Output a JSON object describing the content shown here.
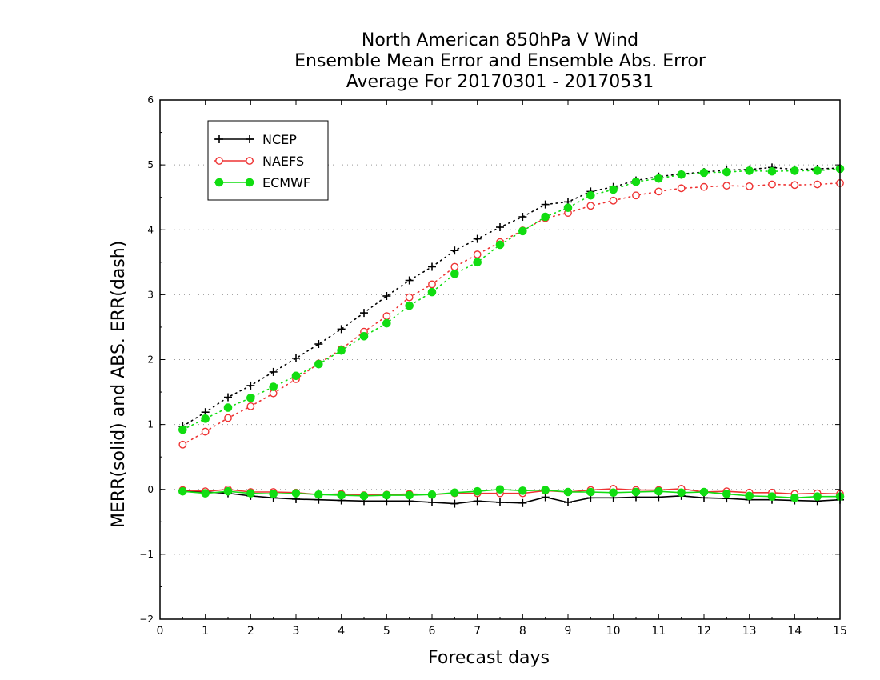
{
  "chart_data": {
    "type": "line",
    "title": [
      "North American 850hPa V Wind",
      "Ensemble Mean Error and Ensemble Abs. Error",
      "Average For 20170301 - 20170531"
    ],
    "xlabel": "Forecast days",
    "ylabel": "MERR(solid) and ABS. ERR(dash)",
    "xlim": [
      0,
      15
    ],
    "ylim": [
      -2,
      6
    ],
    "x_ticks": [
      "0",
      "1",
      "2",
      "3",
      "4",
      "5",
      "6",
      "7",
      "8",
      "9",
      "10",
      "11",
      "12",
      "13",
      "14",
      "15"
    ],
    "y_ticks": [
      "−2",
      "−1",
      "0",
      "1",
      "2",
      "3",
      "4",
      "5",
      "6"
    ],
    "grid": "horizontal dotted",
    "legend_position": "top-left",
    "x": [
      0.5,
      1,
      1.5,
      2,
      2.5,
      3,
      3.5,
      4,
      4.5,
      5,
      5.5,
      6,
      6.5,
      7,
      7.5,
      8,
      8.5,
      9,
      9.5,
      10,
      10.5,
      11,
      11.5,
      12,
      12.5,
      13,
      13.5,
      14,
      14.5,
      15
    ],
    "series": [
      {
        "name": "NCEP",
        "color": "#000000",
        "marker": "plus",
        "abs_err": [
          0.97,
          1.19,
          1.42,
          1.6,
          1.81,
          2.02,
          2.24,
          2.47,
          2.72,
          2.98,
          3.22,
          3.43,
          3.68,
          3.86,
          4.04,
          4.2,
          4.39,
          4.43,
          4.59,
          4.66,
          4.76,
          4.82,
          4.86,
          4.89,
          4.92,
          4.93,
          4.96,
          4.93,
          4.94,
          4.95
        ],
        "mean_err": [
          -0.02,
          -0.04,
          -0.06,
          -0.1,
          -0.13,
          -0.15,
          -0.16,
          -0.17,
          -0.18,
          -0.18,
          -0.18,
          -0.2,
          -0.22,
          -0.18,
          -0.2,
          -0.21,
          -0.12,
          -0.2,
          -0.13,
          -0.13,
          -0.12,
          -0.12,
          -0.1,
          -0.13,
          -0.14,
          -0.16,
          -0.16,
          -0.17,
          -0.18,
          -0.16
        ]
      },
      {
        "name": "NAEFS",
        "color": "#ee3333",
        "marker": "open-circle",
        "abs_err": [
          0.69,
          0.89,
          1.1,
          1.28,
          1.48,
          1.7,
          1.94,
          2.16,
          2.43,
          2.67,
          2.96,
          3.16,
          3.43,
          3.62,
          3.81,
          3.99,
          4.18,
          4.26,
          4.37,
          4.45,
          4.53,
          4.59,
          4.64,
          4.66,
          4.68,
          4.67,
          4.7,
          4.69,
          4.7,
          4.72
        ],
        "mean_err": [
          -0.01,
          -0.03,
          0.0,
          -0.04,
          -0.04,
          -0.05,
          -0.08,
          -0.07,
          -0.09,
          -0.08,
          -0.07,
          -0.08,
          -0.06,
          -0.06,
          -0.06,
          -0.06,
          -0.02,
          -0.04,
          -0.01,
          0.01,
          -0.01,
          -0.01,
          0.01,
          -0.04,
          -0.03,
          -0.05,
          -0.05,
          -0.07,
          -0.06,
          -0.07
        ]
      },
      {
        "name": "ECMWF",
        "color": "#11dd11",
        "marker": "filled-circle",
        "abs_err": [
          0.92,
          1.09,
          1.26,
          1.41,
          1.58,
          1.75,
          1.93,
          2.14,
          2.36,
          2.56,
          2.83,
          3.04,
          3.32,
          3.5,
          3.77,
          3.98,
          4.2,
          4.34,
          4.53,
          4.62,
          4.74,
          4.79,
          4.85,
          4.88,
          4.89,
          4.91,
          4.9,
          4.91,
          4.91,
          4.94
        ],
        "mean_err": [
          -0.03,
          -0.06,
          -0.03,
          -0.06,
          -0.07,
          -0.06,
          -0.08,
          -0.09,
          -0.1,
          -0.09,
          -0.09,
          -0.08,
          -0.05,
          -0.03,
          0.0,
          -0.02,
          -0.01,
          -0.04,
          -0.04,
          -0.05,
          -0.04,
          -0.03,
          -0.05,
          -0.04,
          -0.07,
          -0.1,
          -0.11,
          -0.13,
          -0.11,
          -0.11
        ]
      }
    ]
  }
}
